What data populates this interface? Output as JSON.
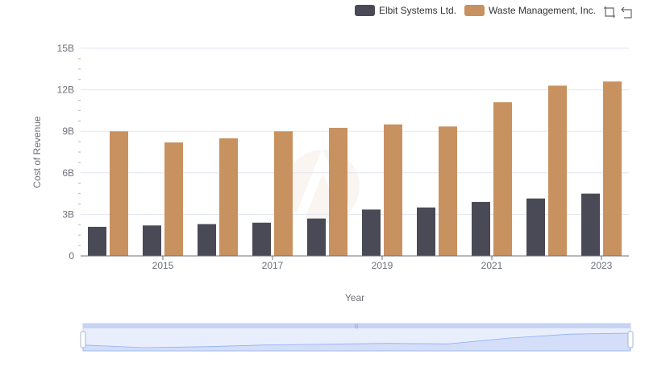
{
  "legend": {
    "items": [
      {
        "label": "Elbit Systems Ltd.",
        "color": "#4a4a56"
      },
      {
        "label": "Waste Management, Inc.",
        "color": "#c89160"
      }
    ]
  },
  "toolbox": {
    "icons": [
      "zoom-select-icon",
      "zoom-reset-icon"
    ]
  },
  "chart_data": {
    "type": "bar",
    "categories": [
      "2014",
      "2015",
      "2016",
      "2017",
      "2018",
      "2019",
      "2020",
      "2021",
      "2022",
      "2023"
    ],
    "x_tick_labels": [
      "2015",
      "2017",
      "2019",
      "2021",
      "2023"
    ],
    "series": [
      {
        "name": "Elbit Systems Ltd.",
        "color": "#4a4a56",
        "values": [
          2.1,
          2.2,
          2.3,
          2.4,
          2.7,
          3.35,
          3.5,
          3.9,
          4.15,
          4.5
        ]
      },
      {
        "name": "Waste Management, Inc.",
        "color": "#c89160",
        "values": [
          9.0,
          8.2,
          8.5,
          9.0,
          9.25,
          9.5,
          9.35,
          11.1,
          12.3,
          12.6
        ]
      }
    ],
    "value_unit": "B",
    "ylim": [
      0,
      15
    ],
    "y_ticks": [
      0,
      3,
      6,
      9,
      12,
      15
    ],
    "y_tick_labels": [
      "0",
      "3B",
      "6B",
      "9B",
      "12B",
      "15B"
    ],
    "xlabel": "Year",
    "ylabel": "Cost of Revenue",
    "grid": true,
    "legend_position": "top-right"
  }
}
